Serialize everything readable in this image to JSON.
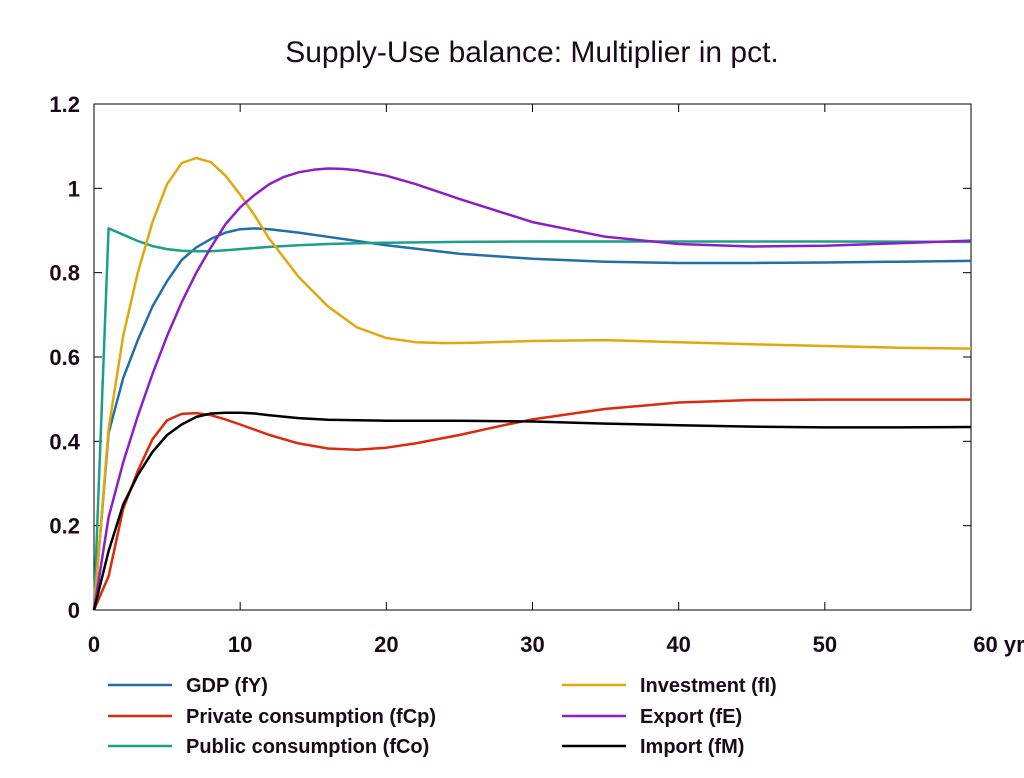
{
  "chart_data": {
    "type": "line",
    "title": "Supply-Use balance: Multiplier in pct.",
    "xlabel": "",
    "ylabel": "",
    "xlim": [
      0,
      60
    ],
    "ylim": [
      0,
      1.2
    ],
    "x_ticks": [
      0,
      10,
      20,
      30,
      40,
      50,
      60
    ],
    "x_tick_labels": [
      "0",
      "10",
      "20",
      "30",
      "40",
      "50",
      "60 yr"
    ],
    "y_ticks": [
      0,
      0.2,
      0.4,
      0.6,
      0.8,
      1,
      1.2
    ],
    "y_tick_labels": [
      "0",
      "0.2",
      "0.4",
      "0.6",
      "0.8",
      "1",
      "1.2"
    ],
    "grid": false,
    "legend_position": "bottom",
    "series": [
      {
        "name": "GDP (fY)",
        "color": "#1f6fa8",
        "x": [
          0,
          1,
          2,
          3,
          4,
          5,
          6,
          7,
          8,
          9,
          10,
          11,
          12,
          14,
          16,
          18,
          20,
          25,
          30,
          35,
          40,
          45,
          50,
          55,
          60
        ],
        "y": [
          0,
          0.42,
          0.55,
          0.64,
          0.72,
          0.78,
          0.83,
          0.86,
          0.88,
          0.895,
          0.903,
          0.905,
          0.903,
          0.895,
          0.885,
          0.875,
          0.865,
          0.845,
          0.833,
          0.826,
          0.823,
          0.823,
          0.824,
          0.826,
          0.828
        ]
      },
      {
        "name": "Private consumption (fCp)",
        "color": "#dc2a0c",
        "x": [
          0,
          1,
          2,
          3,
          4,
          5,
          6,
          7,
          8,
          9,
          10,
          12,
          14,
          16,
          18,
          20,
          22,
          25,
          28,
          30,
          35,
          40,
          45,
          50,
          55,
          60
        ],
        "y": [
          0,
          0.08,
          0.24,
          0.33,
          0.405,
          0.45,
          0.465,
          0.467,
          0.462,
          0.452,
          0.44,
          0.415,
          0.395,
          0.383,
          0.38,
          0.385,
          0.395,
          0.415,
          0.438,
          0.452,
          0.477,
          0.492,
          0.498,
          0.499,
          0.499,
          0.499
        ]
      },
      {
        "name": "Public consumption (fCo)",
        "color": "#1aa086",
        "x": [
          0,
          1,
          2,
          3,
          4,
          5,
          6,
          7,
          8,
          9,
          10,
          12,
          14,
          16,
          18,
          20,
          25,
          30,
          40,
          50,
          60
        ],
        "y": [
          0,
          0.905,
          0.89,
          0.875,
          0.863,
          0.856,
          0.852,
          0.851,
          0.851,
          0.853,
          0.856,
          0.861,
          0.865,
          0.868,
          0.87,
          0.871,
          0.873,
          0.874,
          0.874,
          0.874,
          0.873
        ]
      },
      {
        "name": "Investment (fI)",
        "color": "#e2a70e",
        "x": [
          0,
          1,
          2,
          3,
          4,
          5,
          6,
          7,
          8,
          9,
          10,
          11,
          12,
          14,
          16,
          18,
          20,
          22,
          24,
          26,
          30,
          35,
          40,
          45,
          50,
          55,
          60
        ],
        "y": [
          0,
          0.43,
          0.65,
          0.8,
          0.92,
          1.01,
          1.06,
          1.072,
          1.062,
          1.03,
          0.985,
          0.935,
          0.88,
          0.79,
          0.72,
          0.67,
          0.645,
          0.635,
          0.633,
          0.634,
          0.638,
          0.64,
          0.635,
          0.63,
          0.626,
          0.622,
          0.62
        ]
      },
      {
        "name": "Export (fE)",
        "color": "#8c1ec8",
        "x": [
          0,
          1,
          2,
          3,
          4,
          5,
          6,
          7,
          8,
          9,
          10,
          11,
          12,
          13,
          14,
          15,
          16,
          17,
          18,
          20,
          22,
          25,
          30,
          35,
          40,
          45,
          50,
          55,
          60
        ],
        "y": [
          0,
          0.22,
          0.35,
          0.46,
          0.56,
          0.65,
          0.73,
          0.8,
          0.86,
          0.915,
          0.955,
          0.985,
          1.01,
          1.027,
          1.038,
          1.044,
          1.047,
          1.046,
          1.043,
          1.03,
          1.01,
          0.975,
          0.92,
          0.885,
          0.868,
          0.862,
          0.864,
          0.87,
          0.876
        ]
      },
      {
        "name": "Import (fM)",
        "color": "#000000",
        "x": [
          0,
          1,
          2,
          3,
          4,
          5,
          6,
          7,
          8,
          9,
          10,
          11,
          12,
          14,
          16,
          18,
          20,
          25,
          30,
          35,
          40,
          45,
          50,
          55,
          60
        ],
        "y": [
          0,
          0.14,
          0.25,
          0.32,
          0.375,
          0.415,
          0.44,
          0.458,
          0.466,
          0.468,
          0.468,
          0.466,
          0.462,
          0.455,
          0.451,
          0.45,
          0.449,
          0.449,
          0.447,
          0.442,
          0.438,
          0.435,
          0.433,
          0.433,
          0.434
        ]
      }
    ]
  }
}
